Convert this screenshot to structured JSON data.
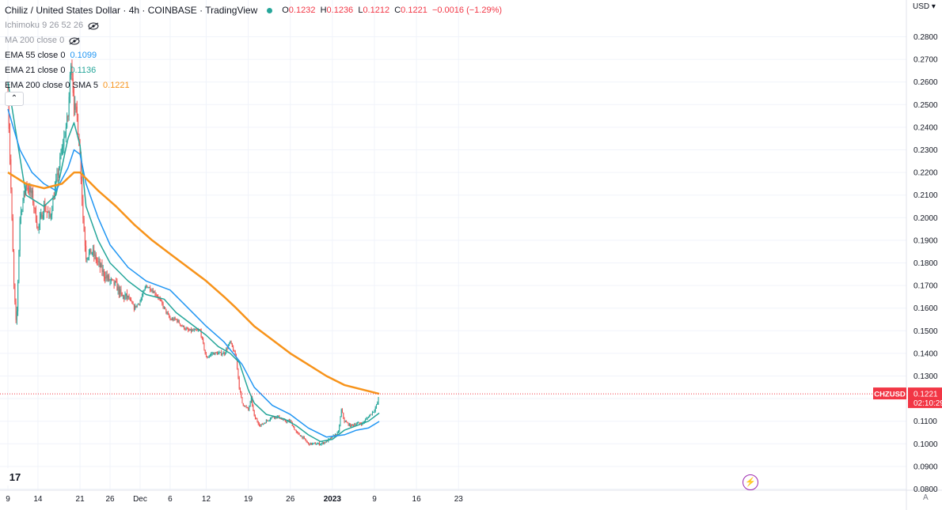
{
  "header": {
    "title": "Chiliz / United States Dollar · 4h · COINBASE · TradingView",
    "ohlc": {
      "o_label": "O",
      "o": "0.1232",
      "h_label": "H",
      "h": "0.1236",
      "l_label": "L",
      "l": "0.1212",
      "c_label": "C",
      "c": "0.1221",
      "chg": "−0.0016 (−1.29%)"
    }
  },
  "indicators": [
    {
      "label": "Ichimoku 9 26 52 26",
      "value": "",
      "hidden": true,
      "color": "#9598a1"
    },
    {
      "label": "MA 200 close 0",
      "value": "",
      "hidden": true,
      "color": "#9598a1"
    },
    {
      "label": "EMA 55 close 0",
      "value": "0.1099",
      "hidden": false,
      "color": "#2196f3"
    },
    {
      "label": "EMA 21 close 0",
      "value": "0.1136",
      "hidden": false,
      "color": "#26a69a"
    },
    {
      "label": "EMA 200 close 0 SMA 5",
      "value": "0.1221",
      "hidden": false,
      "color": "#f7931a"
    }
  ],
  "axis": {
    "currency": "USD",
    "price_tag_symbol": "CHZUSD",
    "price_tag_value": "0.1221",
    "countdown": "02:10:29",
    "auto_label": "A",
    "collapse_icon": "chevron-up-icon",
    "logo_text": "17",
    "alert_icon": "lightning-icon"
  },
  "colors": {
    "up": "#26a69a",
    "down": "#ef5350",
    "ema21": "#26a69a",
    "ema55": "#2196f3",
    "ema200": "#f7931a",
    "tag": "#f23645"
  },
  "chart_data": {
    "type": "line",
    "symbol": "CHZUSD",
    "timeframe": "4h",
    "ylim": [
      0.08,
      0.28
    ],
    "y_ticks": [
      "0.2800",
      "0.2700",
      "0.2600",
      "0.2500",
      "0.2400",
      "0.2300",
      "0.2200",
      "0.2100",
      "0.2000",
      "0.1900",
      "0.1800",
      "0.1700",
      "0.1600",
      "0.1500",
      "0.1400",
      "0.1300",
      "0.1200",
      "0.1100",
      "0.1000",
      "0.0900",
      "0.0800"
    ],
    "x_ticks": [
      {
        "label": "9",
        "day": 0
      },
      {
        "label": "14",
        "day": 5
      },
      {
        "label": "21",
        "day": 12
      },
      {
        "label": "26",
        "day": 17
      },
      {
        "label": "Dec",
        "day": 22
      },
      {
        "label": "6",
        "day": 27
      },
      {
        "label": "12",
        "day": 33
      },
      {
        "label": "19",
        "day": 40
      },
      {
        "label": "26",
        "day": 47
      },
      {
        "label": "2023",
        "day": 54
      },
      {
        "label": "9",
        "day": 61
      },
      {
        "label": "16",
        "day": 68
      },
      {
        "label": "23",
        "day": 75
      }
    ],
    "last_price": 0.1221,
    "price_path": [
      [
        0,
        0.255
      ],
      [
        1,
        0.17
      ],
      [
        1.4,
        0.15
      ],
      [
        2,
        0.2
      ],
      [
        3,
        0.215
      ],
      [
        4,
        0.21
      ],
      [
        5,
        0.195
      ],
      [
        6,
        0.205
      ],
      [
        7,
        0.2
      ],
      [
        8,
        0.215
      ],
      [
        9,
        0.23
      ],
      [
        10,
        0.245
      ],
      [
        10.5,
        0.27
      ],
      [
        11,
        0.25
      ],
      [
        11.5,
        0.245
      ],
      [
        12,
        0.228
      ],
      [
        12.5,
        0.2
      ],
      [
        13,
        0.183
      ],
      [
        14,
        0.185
      ],
      [
        15,
        0.18
      ],
      [
        16,
        0.175
      ],
      [
        17,
        0.172
      ],
      [
        18,
        0.17
      ],
      [
        19,
        0.165
      ],
      [
        20,
        0.165
      ],
      [
        21,
        0.16
      ],
      [
        22,
        0.163
      ],
      [
        23,
        0.17
      ],
      [
        24,
        0.168
      ],
      [
        25,
        0.165
      ],
      [
        26,
        0.16
      ],
      [
        27,
        0.155
      ],
      [
        28,
        0.155
      ],
      [
        29,
        0.152
      ],
      [
        30,
        0.15
      ],
      [
        31,
        0.15
      ],
      [
        32,
        0.15
      ],
      [
        33,
        0.138
      ],
      [
        34,
        0.14
      ],
      [
        35,
        0.14
      ],
      [
        36,
        0.14
      ],
      [
        37,
        0.145
      ],
      [
        38,
        0.138
      ],
      [
        38.5,
        0.125
      ],
      [
        39,
        0.118
      ],
      [
        40,
        0.115
      ],
      [
        40.5,
        0.12
      ],
      [
        41,
        0.112
      ],
      [
        42,
        0.108
      ],
      [
        43,
        0.11
      ],
      [
        44,
        0.112
      ],
      [
        45,
        0.112
      ],
      [
        46,
        0.11
      ],
      [
        47,
        0.11
      ],
      [
        48,
        0.105
      ],
      [
        49,
        0.103
      ],
      [
        50,
        0.1
      ],
      [
        51,
        0.1
      ],
      [
        52,
        0.1
      ],
      [
        53,
        0.101
      ],
      [
        54,
        0.103
      ],
      [
        55,
        0.105
      ],
      [
        55.5,
        0.115
      ],
      [
        56,
        0.11
      ],
      [
        57,
        0.108
      ],
      [
        58,
        0.109
      ],
      [
        59,
        0.109
      ],
      [
        60,
        0.112
      ],
      [
        61,
        0.115
      ],
      [
        61.5,
        0.118
      ],
      [
        61.8,
        0.122
      ]
    ],
    "series": [
      {
        "key": "ema21",
        "name": "EMA 21 close 0",
        "values": [
          [
            0,
            0.26
          ],
          [
            3,
            0.21
          ],
          [
            6,
            0.205
          ],
          [
            8,
            0.21
          ],
          [
            10,
            0.235
          ],
          [
            11,
            0.242
          ],
          [
            12,
            0.232
          ],
          [
            13,
            0.205
          ],
          [
            15,
            0.19
          ],
          [
            17,
            0.18
          ],
          [
            20,
            0.172
          ],
          [
            23,
            0.166
          ],
          [
            26,
            0.164
          ],
          [
            28,
            0.158
          ],
          [
            31,
            0.152
          ],
          [
            33,
            0.148
          ],
          [
            35,
            0.143
          ],
          [
            37,
            0.14
          ],
          [
            38.5,
            0.136
          ],
          [
            40,
            0.124
          ],
          [
            41,
            0.118
          ],
          [
            43,
            0.113
          ],
          [
            46,
            0.111
          ],
          [
            48,
            0.108
          ],
          [
            50,
            0.104
          ],
          [
            52,
            0.101
          ],
          [
            54,
            0.102
          ],
          [
            56,
            0.106
          ],
          [
            58,
            0.108
          ],
          [
            60,
            0.11
          ],
          [
            61.8,
            0.1136
          ]
        ]
      },
      {
        "key": "ema55",
        "name": "EMA 55 close 0",
        "values": [
          [
            0,
            0.248
          ],
          [
            2,
            0.23
          ],
          [
            4,
            0.22
          ],
          [
            6,
            0.215
          ],
          [
            8,
            0.212
          ],
          [
            10,
            0.222
          ],
          [
            11,
            0.23
          ],
          [
            12,
            0.228
          ],
          [
            13,
            0.215
          ],
          [
            15,
            0.2
          ],
          [
            17,
            0.188
          ],
          [
            20,
            0.178
          ],
          [
            23,
            0.172
          ],
          [
            27,
            0.168
          ],
          [
            30,
            0.16
          ],
          [
            33,
            0.152
          ],
          [
            36,
            0.145
          ],
          [
            39,
            0.135
          ],
          [
            41,
            0.125
          ],
          [
            44,
            0.117
          ],
          [
            47,
            0.113
          ],
          [
            50,
            0.107
          ],
          [
            53,
            0.103
          ],
          [
            56,
            0.104
          ],
          [
            58,
            0.106
          ],
          [
            60,
            0.107
          ],
          [
            61.8,
            0.1099
          ]
        ]
      },
      {
        "key": "ema200",
        "name": "EMA 200 close 0 SMA 5",
        "values": [
          [
            0,
            0.22
          ],
          [
            3,
            0.215
          ],
          [
            6,
            0.213
          ],
          [
            9,
            0.215
          ],
          [
            11,
            0.22
          ],
          [
            12,
            0.22
          ],
          [
            15,
            0.212
          ],
          [
            18,
            0.205
          ],
          [
            21,
            0.197
          ],
          [
            24,
            0.19
          ],
          [
            27,
            0.184
          ],
          [
            30,
            0.178
          ],
          [
            33,
            0.172
          ],
          [
            36,
            0.165
          ],
          [
            38,
            0.16
          ],
          [
            41,
            0.152
          ],
          [
            44,
            0.146
          ],
          [
            47,
            0.14
          ],
          [
            50,
            0.135
          ],
          [
            53,
            0.13
          ],
          [
            56,
            0.126
          ],
          [
            59,
            0.124
          ],
          [
            61.8,
            0.1221
          ]
        ]
      }
    ]
  }
}
